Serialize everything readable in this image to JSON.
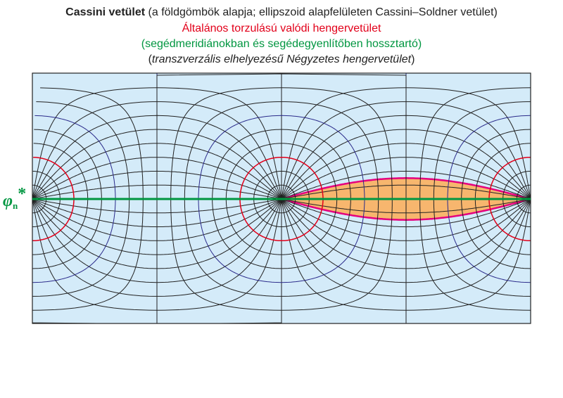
{
  "title": {
    "bold": "Cassini vetület",
    "rest": " (a földgömbök alapja; ellipszoid alapfelületen Cassini–Soldner vetület)"
  },
  "subtitle_red": "Általános torzulású valódi hengervetület",
  "subtitle_green": "(segédmeridiánokban és segédegyenlítőben hossztartó)",
  "subtitle_italic": {
    "open": "(",
    "text": "transzverzális elhelyezésű Négyzetes hengervetület",
    "close": ")"
  },
  "axis_label": {
    "symbol": "φ",
    "subscript": "n",
    "mark": "*"
  }
}
